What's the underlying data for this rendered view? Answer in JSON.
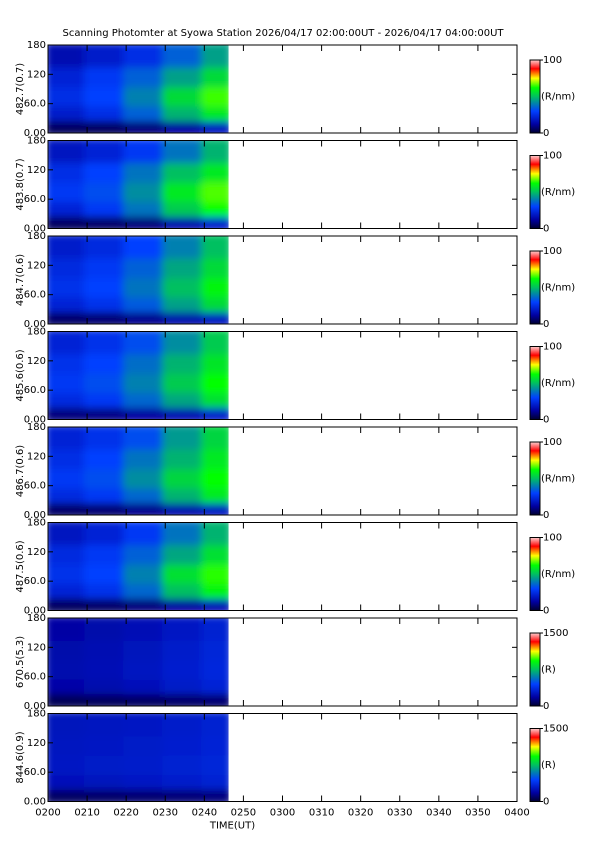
{
  "chart_data": [
    {
      "type": "heatmap",
      "title": "Scanning Photomter at Syowa Station 2026/04/17 02:00:00UT - 2026/04/17 04:00:00UT",
      "ylabel": "482.7(0.7)",
      "xlim": [
        2,
        4
      ],
      "xticks": [
        {
          "value": 2,
          "label": "0200"
        },
        {
          "value": 2.1667,
          "label": "0210"
        },
        {
          "value": 2.3333,
          "label": "0220"
        },
        {
          "value": 2.5,
          "label": "0230"
        },
        {
          "value": 2.6667,
          "label": "0240"
        },
        {
          "value": 2.8333,
          "label": "0250"
        },
        {
          "value": 3,
          "label": "0300"
        },
        {
          "value": 3.1667,
          "label": "0310"
        },
        {
          "value": 3.3333,
          "label": "0320"
        },
        {
          "value": 3.5,
          "label": "0330"
        },
        {
          "value": 3.6667,
          "label": "0340"
        },
        {
          "value": 3.8333,
          "label": "0350"
        },
        {
          "value": 4,
          "label": "0400"
        }
      ],
      "ylim": [
        0,
        180
      ],
      "yticks": [
        {
          "value": 0,
          "label": "0.00"
        },
        {
          "value": 60,
          "label": "60.0"
        },
        120,
        180
      ],
      "x": [
        2,
        2.1667,
        2.3333,
        2.5,
        2.6667,
        2.77
      ],
      "y": [
        0,
        30,
        60,
        100,
        140,
        180
      ],
      "z": [
        [
          5,
          5,
          8,
          12,
          18
        ],
        [
          20,
          25,
          35,
          48,
          58
        ],
        [
          25,
          30,
          40,
          55,
          65
        ],
        [
          22,
          28,
          35,
          45,
          55
        ],
        [
          15,
          20,
          25,
          35,
          45
        ]
      ],
      "colorbar": {
        "range": [
          0,
          100
        ],
        "ticks": [
          0,
          100
        ],
        "label": "(R/nm)"
      }
    },
    {
      "type": "heatmap",
      "ylabel": "483.8(0.7)",
      "xlim": [
        2,
        4
      ],
      "xticks": [
        {
          "value": 2,
          "label": "0200"
        },
        {
          "value": 2.1667,
          "label": "0210"
        },
        {
          "value": 2.3333,
          "label": "0220"
        },
        {
          "value": 2.5,
          "label": "0230"
        },
        {
          "value": 2.6667,
          "label": "0240"
        },
        {
          "value": 2.8333,
          "label": "0250"
        },
        {
          "value": 3,
          "label": "0300"
        },
        {
          "value": 3.1667,
          "label": "0310"
        },
        {
          "value": 3.3333,
          "label": "0320"
        },
        {
          "value": 3.5,
          "label": "0330"
        },
        {
          "value": 3.6667,
          "label": "0340"
        },
        {
          "value": 3.8333,
          "label": "0350"
        },
        {
          "value": 4,
          "label": "0400"
        }
      ],
      "ylim": [
        0,
        180
      ],
      "yticks": [
        {
          "value": 0,
          "label": "0.00"
        },
        {
          "value": 60,
          "label": "60.0"
        },
        120,
        180
      ],
      "x": [
        2,
        2.1667,
        2.3333,
        2.5,
        2.6667,
        2.77
      ],
      "y": [
        0,
        30,
        60,
        100,
        140,
        180
      ],
      "z": [
        [
          5,
          6,
          8,
          14,
          20
        ],
        [
          22,
          28,
          38,
          52,
          62
        ],
        [
          28,
          32,
          42,
          58,
          66
        ],
        [
          25,
          30,
          38,
          50,
          58
        ],
        [
          18,
          22,
          28,
          38,
          48
        ]
      ],
      "colorbar": {
        "range": [
          0,
          100
        ],
        "ticks": [
          0,
          100
        ],
        "label": "(R/nm)"
      }
    },
    {
      "type": "heatmap",
      "ylabel": "484.7(0.6)",
      "xlim": [
        2,
        4
      ],
      "xticks": [
        {
          "value": 2,
          "label": "0200"
        },
        {
          "value": 2.1667,
          "label": "0210"
        },
        {
          "value": 2.3333,
          "label": "0220"
        },
        {
          "value": 2.5,
          "label": "0230"
        },
        {
          "value": 2.6667,
          "label": "0240"
        },
        {
          "value": 2.8333,
          "label": "0250"
        },
        {
          "value": 3,
          "label": "0300"
        },
        {
          "value": 3.1667,
          "label": "0310"
        },
        {
          "value": 3.3333,
          "label": "0320"
        },
        {
          "value": 3.5,
          "label": "0330"
        },
        {
          "value": 3.6667,
          "label": "0340"
        },
        {
          "value": 3.8333,
          "label": "0350"
        },
        {
          "value": 4,
          "label": "0400"
        }
      ],
      "ylim": [
        0,
        180
      ],
      "yticks": [
        {
          "value": 0,
          "label": "0.00"
        },
        {
          "value": 60,
          "label": "60.0"
        },
        120,
        180
      ],
      "x": [
        2,
        2.1667,
        2.3333,
        2.5,
        2.6667,
        2.77
      ],
      "y": [
        0,
        30,
        60,
        100,
        140,
        180
      ],
      "z": [
        [
          6,
          7,
          10,
          14,
          18
        ],
        [
          22,
          26,
          34,
          45,
          55
        ],
        [
          26,
          30,
          38,
          50,
          60
        ],
        [
          24,
          28,
          35,
          46,
          55
        ],
        [
          20,
          24,
          30,
          40,
          50
        ]
      ],
      "colorbar": {
        "range": [
          0,
          100
        ],
        "ticks": [
          0,
          100
        ],
        "label": "(R/nm)"
      }
    },
    {
      "type": "heatmap",
      "ylabel": "485.6(0.6)",
      "xlim": [
        2,
        4
      ],
      "xticks": [
        {
          "value": 2,
          "label": "0200"
        },
        {
          "value": 2.1667,
          "label": "0210"
        },
        {
          "value": 2.3333,
          "label": "0220"
        },
        {
          "value": 2.5,
          "label": "0230"
        },
        {
          "value": 2.6667,
          "label": "0240"
        },
        {
          "value": 2.8333,
          "label": "0250"
        },
        {
          "value": 3,
          "label": "0300"
        },
        {
          "value": 3.1667,
          "label": "0310"
        },
        {
          "value": 3.3333,
          "label": "0320"
        },
        {
          "value": 3.5,
          "label": "0330"
        },
        {
          "value": 3.6667,
          "label": "0340"
        },
        {
          "value": 3.8333,
          "label": "0350"
        },
        {
          "value": 4,
          "label": "0400"
        }
      ],
      "ylim": [
        0,
        180
      ],
      "yticks": [
        {
          "value": 0,
          "label": "0.00"
        },
        {
          "value": 60,
          "label": "60.0"
        },
        120,
        180
      ],
      "x": [
        2,
        2.1667,
        2.3333,
        2.5,
        2.6667,
        2.77
      ],
      "y": [
        0,
        30,
        60,
        100,
        140,
        180
      ],
      "z": [
        [
          8,
          9,
          12,
          15,
          20
        ],
        [
          24,
          28,
          36,
          46,
          56
        ],
        [
          28,
          32,
          40,
          52,
          62
        ],
        [
          26,
          30,
          37,
          48,
          57
        ],
        [
          22,
          26,
          32,
          42,
          52
        ]
      ],
      "colorbar": {
        "range": [
          0,
          100
        ],
        "ticks": [
          0,
          100
        ],
        "label": "(R/nm)"
      }
    },
    {
      "type": "heatmap",
      "ylabel": "486.7(0.6)",
      "xlim": [
        2,
        4
      ],
      "xticks": [
        {
          "value": 2,
          "label": "0200"
        },
        {
          "value": 2.1667,
          "label": "0210"
        },
        {
          "value": 2.3333,
          "label": "0220"
        },
        {
          "value": 2.5,
          "label": "0230"
        },
        {
          "value": 2.6667,
          "label": "0240"
        },
        {
          "value": 2.8333,
          "label": "0250"
        },
        {
          "value": 3,
          "label": "0300"
        },
        {
          "value": 3.1667,
          "label": "0310"
        },
        {
          "value": 3.3333,
          "label": "0320"
        },
        {
          "value": 3.5,
          "label": "0330"
        },
        {
          "value": 3.6667,
          "label": "0340"
        },
        {
          "value": 3.8333,
          "label": "0350"
        },
        {
          "value": 4,
          "label": "0400"
        }
      ],
      "ylim": [
        0,
        180
      ],
      "yticks": [
        {
          "value": 0,
          "label": "0.00"
        },
        {
          "value": 60,
          "label": "60.0"
        },
        120,
        180
      ],
      "x": [
        2,
        2.1667,
        2.3333,
        2.5,
        2.6667,
        2.77
      ],
      "y": [
        0,
        30,
        60,
        100,
        140,
        180
      ],
      "z": [
        [
          6,
          7,
          10,
          14,
          18
        ],
        [
          24,
          28,
          36,
          48,
          58
        ],
        [
          28,
          32,
          42,
          54,
          62
        ],
        [
          25,
          30,
          38,
          48,
          58
        ],
        [
          22,
          26,
          32,
          44,
          54
        ]
      ],
      "colorbar": {
        "range": [
          0,
          100
        ],
        "ticks": [
          0,
          100
        ],
        "label": "(R/nm)"
      }
    },
    {
      "type": "heatmap",
      "ylabel": "487.5(0.6)",
      "xlim": [
        2,
        4
      ],
      "xticks": [
        {
          "value": 2,
          "label": "0200"
        },
        {
          "value": 2.1667,
          "label": "0210"
        },
        {
          "value": 2.3333,
          "label": "0220"
        },
        {
          "value": 2.5,
          "label": "0230"
        },
        {
          "value": 2.6667,
          "label": "0240"
        },
        {
          "value": 2.8333,
          "label": "0250"
        },
        {
          "value": 3,
          "label": "0300"
        },
        {
          "value": 3.1667,
          "label": "0310"
        },
        {
          "value": 3.3333,
          "label": "0320"
        },
        {
          "value": 3.5,
          "label": "0330"
        },
        {
          "value": 3.6667,
          "label": "0340"
        },
        {
          "value": 3.8333,
          "label": "0350"
        },
        {
          "value": 4,
          "label": "0400"
        }
      ],
      "ylim": [
        0,
        180
      ],
      "yticks": [
        {
          "value": 0,
          "label": "0.00"
        },
        {
          "value": 60,
          "label": "60.0"
        },
        120,
        180
      ],
      "x": [
        2,
        2.1667,
        2.3333,
        2.5,
        2.6667,
        2.77
      ],
      "y": [
        0,
        30,
        60,
        100,
        140,
        180
      ],
      "z": [
        [
          5,
          6,
          8,
          12,
          16
        ],
        [
          22,
          26,
          36,
          50,
          60
        ],
        [
          26,
          30,
          40,
          56,
          64
        ],
        [
          24,
          28,
          35,
          46,
          56
        ],
        [
          18,
          22,
          28,
          38,
          48
        ]
      ],
      "colorbar": {
        "range": [
          0,
          100
        ],
        "ticks": [
          0,
          100
        ],
        "label": "(R/nm)"
      }
    },
    {
      "type": "heatmap",
      "ylabel": "670.5(5.3)",
      "xlim": [
        2,
        4
      ],
      "xticks": [
        {
          "value": 2,
          "label": "0200"
        },
        {
          "value": 2.1667,
          "label": "0210"
        },
        {
          "value": 2.3333,
          "label": "0220"
        },
        {
          "value": 2.5,
          "label": "0230"
        },
        {
          "value": 2.6667,
          "label": "0240"
        },
        {
          "value": 2.8333,
          "label": "0250"
        },
        {
          "value": 3,
          "label": "0300"
        },
        {
          "value": 3.1667,
          "label": "0310"
        },
        {
          "value": 3.3333,
          "label": "0320"
        },
        {
          "value": 3.5,
          "label": "0330"
        },
        {
          "value": 3.6667,
          "label": "0340"
        },
        {
          "value": 3.8333,
          "label": "0350"
        },
        {
          "value": 4,
          "label": "0400"
        }
      ],
      "ylim": [
        0,
        180
      ],
      "yticks": [
        {
          "value": 0,
          "label": "0.00"
        },
        {
          "value": 60,
          "label": "60.0"
        },
        120,
        180
      ],
      "x": [
        2,
        2.1667,
        2.3333,
        2.5,
        2.6667,
        2.77
      ],
      "y": [
        0,
        30,
        60,
        100,
        140,
        180
      ],
      "z": [
        [
          60,
          70,
          80,
          90,
          100
        ],
        [
          200,
          220,
          250,
          290,
          330
        ],
        [
          220,
          240,
          270,
          310,
          350
        ],
        [
          210,
          230,
          260,
          300,
          340
        ],
        [
          190,
          210,
          240,
          280,
          320
        ]
      ],
      "colorbar": {
        "range": [
          0,
          1500
        ],
        "ticks": [
          0,
          1500
        ],
        "label": "(R)"
      }
    },
    {
      "type": "heatmap",
      "ylabel": "844.6(0.9)",
      "xlabel": "TIME(UT)",
      "xlim": [
        2,
        4
      ],
      "xticks": [
        {
          "value": 2,
          "label": "0200"
        },
        {
          "value": 2.1667,
          "label": "0210"
        },
        {
          "value": 2.3333,
          "label": "0220"
        },
        {
          "value": 2.5,
          "label": "0230"
        },
        {
          "value": 2.6667,
          "label": "0240"
        },
        {
          "value": 2.8333,
          "label": "0250"
        },
        {
          "value": 3,
          "label": "0300"
        },
        {
          "value": 3.1667,
          "label": "0310"
        },
        {
          "value": 3.3333,
          "label": "0320"
        },
        {
          "value": 3.5,
          "label": "0330"
        },
        {
          "value": 3.6667,
          "label": "0340"
        },
        {
          "value": 3.8333,
          "label": "0350"
        },
        {
          "value": 4,
          "label": "0400"
        }
      ],
      "ylim": [
        0,
        180
      ],
      "yticks": [
        {
          "value": 0,
          "label": "0.00"
        },
        {
          "value": 60,
          "label": "60.0"
        },
        120,
        180
      ],
      "x": [
        2,
        2.1667,
        2.3333,
        2.5,
        2.6667,
        2.77
      ],
      "y": [
        0,
        30,
        60,
        100,
        140,
        180
      ],
      "z": [
        [
          80,
          90,
          100,
          110,
          120
        ],
        [
          250,
          260,
          280,
          300,
          320
        ],
        [
          280,
          290,
          300,
          320,
          340
        ],
        [
          270,
          280,
          290,
          310,
          330
        ],
        [
          260,
          270,
          280,
          300,
          320
        ]
      ],
      "colorbar": {
        "range": [
          0,
          1500
        ],
        "ticks": [
          0,
          1500
        ],
        "label": "(R)"
      }
    }
  ]
}
